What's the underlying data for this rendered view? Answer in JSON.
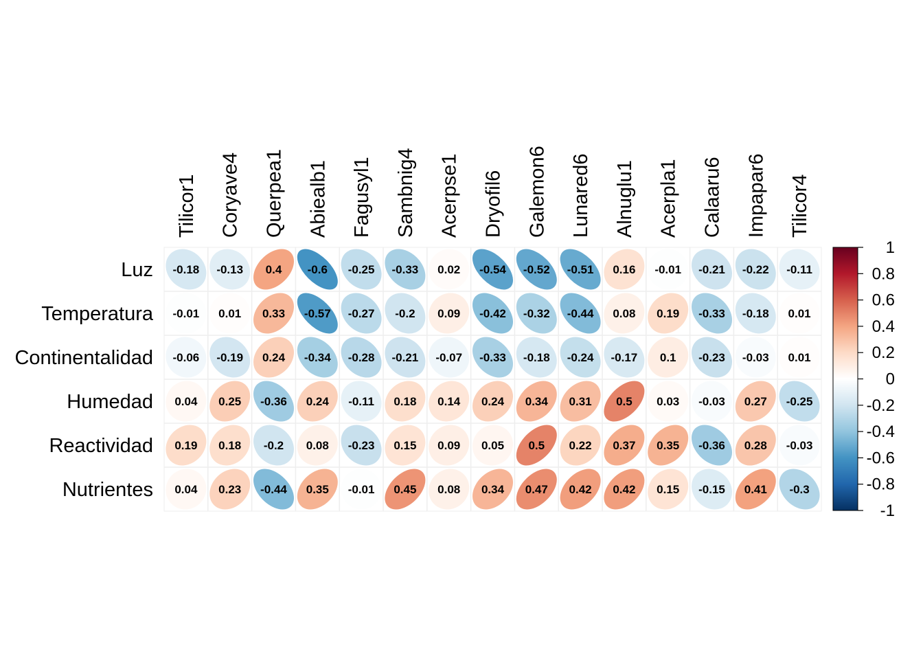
{
  "chart_data": {
    "type": "heatmap",
    "method": "ellipse",
    "rows": [
      "Luz",
      "Temperatura",
      "Continentalidad",
      "Humedad",
      "Reactividad",
      "Nutrientes"
    ],
    "columns": [
      "Tilicor1",
      "Coryave4",
      "Querpea1",
      "Abiealb1",
      "Fagusyl1",
      "Sambnig4",
      "Acerpse1",
      "Dryofil6",
      "Galemon6",
      "Lunared6",
      "Alnuglu1",
      "Acerpla1",
      "Calaaru6",
      "Impapar6",
      "Tilicor4"
    ],
    "values": [
      [
        -0.18,
        -0.13,
        0.4,
        -0.6,
        -0.25,
        -0.33,
        0.02,
        -0.54,
        -0.52,
        -0.51,
        0.16,
        -0.01,
        -0.21,
        -0.22,
        -0.11
      ],
      [
        -0.01,
        0.01,
        0.33,
        -0.57,
        -0.27,
        -0.2,
        0.09,
        -0.42,
        -0.32,
        -0.44,
        0.08,
        0.19,
        -0.33,
        -0.18,
        0.01
      ],
      [
        -0.06,
        -0.19,
        0.24,
        -0.34,
        -0.28,
        -0.21,
        -0.07,
        -0.33,
        -0.18,
        -0.24,
        -0.17,
        0.1,
        -0.23,
        -0.03,
        0.01
      ],
      [
        0.04,
        0.25,
        -0.36,
        0.24,
        -0.11,
        0.18,
        0.14,
        0.24,
        0.34,
        0.31,
        0.5,
        0.03,
        -0.03,
        0.27,
        -0.25
      ],
      [
        0.19,
        0.18,
        -0.2,
        0.08,
        -0.23,
        0.15,
        0.09,
        0.05,
        0.5,
        0.22,
        0.37,
        0.35,
        -0.36,
        0.28,
        -0.03
      ],
      [
        0.04,
        0.23,
        -0.44,
        0.35,
        -0.01,
        0.45,
        0.08,
        0.34,
        0.47,
        0.42,
        0.42,
        0.15,
        -0.15,
        0.41,
        -0.3
      ]
    ],
    "legend": {
      "range": [
        -1,
        1
      ],
      "ticks": [
        "1",
        "0.8",
        "0.6",
        "0.4",
        "0.2",
        "0",
        "-0.2",
        "-0.4",
        "-0.6",
        "-0.8",
        "-1"
      ],
      "colors": [
        "#67001F",
        "#B2182B",
        "#D6604D",
        "#F4A582",
        "#FDDBC7",
        "#FFFFFF",
        "#D1E5F0",
        "#92C5DE",
        "#4393C3",
        "#2166AC",
        "#053061"
      ],
      "placement": "right"
    },
    "grid": true
  }
}
